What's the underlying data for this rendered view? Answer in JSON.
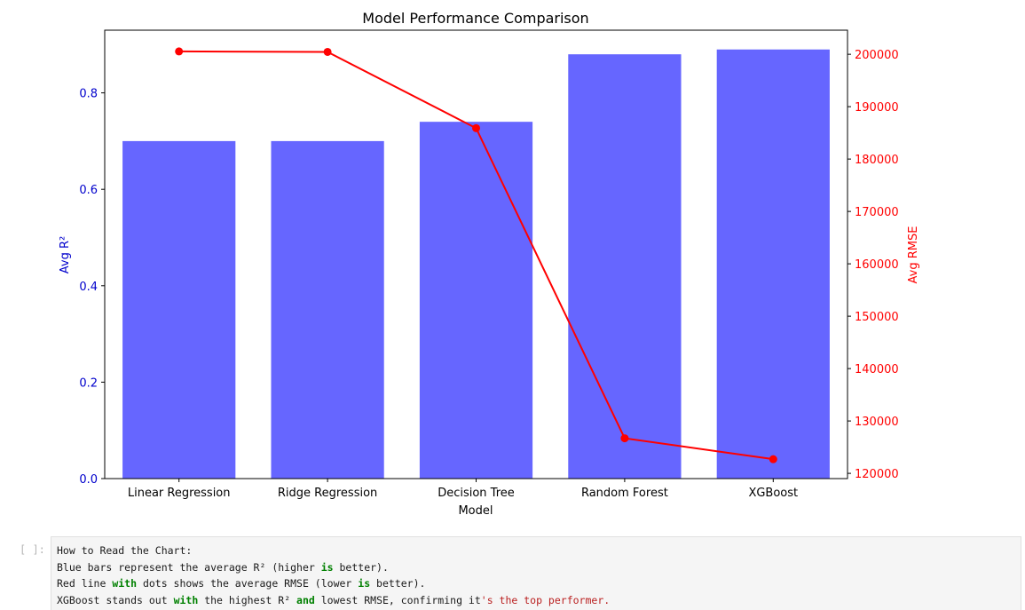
{
  "chart_data": {
    "type": "bar+line",
    "title": "Model Performance Comparison",
    "xlabel": "Model",
    "categories": [
      "Linear Regression",
      "Ridge Regression",
      "Decision Tree",
      "Random Forest",
      "XGBoost"
    ],
    "bar_series": {
      "name": "Avg R²",
      "axis": "left",
      "ylabel": "Avg R²",
      "ylim": [
        0.0,
        0.93
      ],
      "yticks": [
        0.0,
        0.2,
        0.4,
        0.6,
        0.8
      ],
      "ytick_labels": [
        "0.0",
        "0.2",
        "0.4",
        "0.6",
        "0.8"
      ],
      "values": [
        0.7,
        0.7,
        0.74,
        0.88,
        0.89
      ],
      "color": "#6666ff"
    },
    "line_series": {
      "name": "Avg RMSE",
      "axis": "right",
      "ylabel": "Avg RMSE",
      "ylim": [
        119000,
        204600
      ],
      "yticks": [
        120000,
        130000,
        140000,
        150000,
        160000,
        170000,
        180000,
        190000,
        200000
      ],
      "ytick_labels": [
        "120000",
        "130000",
        "140000",
        "150000",
        "160000",
        "170000",
        "180000",
        "190000",
        "200000"
      ],
      "values": [
        200550,
        200450,
        185900,
        126700,
        122700
      ],
      "color": "#ff0000"
    },
    "left_axis_color": "#0000cc",
    "right_axis_color": "#ff0000",
    "grid": false
  },
  "cell": {
    "prompt": "[ ]:",
    "lines": [
      [
        {
          "t": "How to Read the Chart:",
          "c": ""
        }
      ],
      [
        {
          "t": "Blue bars represent the average R² (higher ",
          "c": ""
        },
        {
          "t": "is",
          "c": "kw"
        },
        {
          "t": " better).",
          "c": ""
        }
      ],
      [
        {
          "t": "Red line ",
          "c": ""
        },
        {
          "t": "with",
          "c": "kw"
        },
        {
          "t": " dots shows the average RMSE (lower ",
          "c": ""
        },
        {
          "t": "is",
          "c": "kw"
        },
        {
          "t": " better).",
          "c": ""
        }
      ],
      [
        {
          "t": "XGBoost stands out ",
          "c": ""
        },
        {
          "t": "with",
          "c": "kw"
        },
        {
          "t": " the highest R² ",
          "c": ""
        },
        {
          "t": "and",
          "c": "kw"
        },
        {
          "t": " lowest RMSE, confirming it",
          "c": ""
        },
        {
          "t": "'s the top performer.",
          "c": "str"
        }
      ]
    ]
  }
}
